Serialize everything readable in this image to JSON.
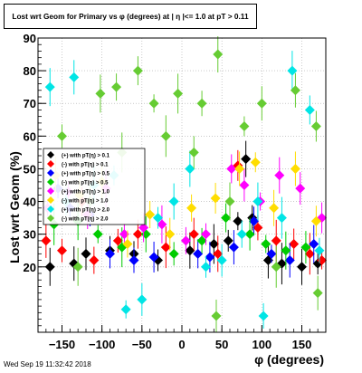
{
  "title": "Lost wrt Geom for Primary vs φ (degrees) at | η |<= 1.0 at pT > 0.11",
  "footer": "Wed Sep 19 11:32:42 2018",
  "chart_data": {
    "type": "scatter",
    "title": "Lost wrt Geom for Primary vs φ (degrees) at | η |<= 1.0 at pT > 0.11",
    "xlabel": "φ (degrees)",
    "ylabel": "Lost wrt Geom (%)",
    "xlim": [
      -180,
      180
    ],
    "ylim": [
      0,
      90
    ],
    "xticks": [
      -150,
      -100,
      -50,
      0,
      50,
      100,
      150
    ],
    "yticks": [
      20,
      30,
      40,
      50,
      60,
      70,
      80,
      90
    ],
    "xticklabels": [
      "−150",
      "−100",
      "−50",
      "0",
      "50",
      "100",
      "150"
    ],
    "yticklabels": [
      "20",
      "30",
      "40",
      "50",
      "60",
      "70",
      "80",
      "90"
    ],
    "grid": true,
    "legend_position": "middle-left",
    "series": [
      {
        "name": "(+) with pT(η) > 0.1",
        "color": "#000000",
        "points": [
          [
            -165,
            20
          ],
          [
            -135,
            21
          ],
          [
            -120,
            24
          ],
          [
            -90,
            25
          ],
          [
            -60,
            24
          ],
          [
            -30,
            22
          ],
          [
            10,
            25
          ],
          [
            40,
            27
          ],
          [
            58,
            28
          ],
          [
            70,
            34
          ],
          [
            80,
            53
          ],
          [
            88,
            35
          ],
          [
            108,
            22
          ],
          [
            125,
            21
          ],
          [
            150,
            20
          ],
          [
            170,
            21
          ]
        ]
      },
      {
        "name": "(-) with pT(η) > 0.1",
        "color": "#ff0000",
        "points": [
          [
            -170,
            28
          ],
          [
            -150,
            25
          ],
          [
            -125,
            40
          ],
          [
            -110,
            22
          ],
          [
            -80,
            28
          ],
          [
            -55,
            30
          ],
          [
            -20,
            26
          ],
          [
            15,
            30
          ],
          [
            45,
            24
          ],
          [
            70,
            51
          ],
          [
            95,
            32
          ],
          [
            118,
            28
          ],
          [
            140,
            27
          ],
          [
            160,
            24
          ],
          [
            175,
            22
          ]
        ]
      },
      {
        "name": "(+) with pT(η) > 0.5",
        "color": "#0000ff",
        "points": [
          [
            -155,
            44
          ],
          [
            -140,
            38
          ],
          [
            -115,
            36
          ],
          [
            -90,
            24
          ],
          [
            -60,
            22
          ],
          [
            -35,
            23
          ],
          [
            20,
            24
          ],
          [
            35,
            23
          ],
          [
            65,
            26
          ],
          [
            90,
            34
          ],
          [
            112,
            24
          ],
          [
            135,
            22
          ],
          [
            165,
            27
          ]
        ]
      },
      {
        "name": "(-) with pT(η) > 0.5",
        "color": "#00cc00",
        "points": [
          [
            -160,
            33
          ],
          [
            -130,
            34
          ],
          [
            -105,
            30
          ],
          [
            -75,
            26
          ],
          [
            -45,
            30
          ],
          [
            -10,
            24
          ],
          [
            25,
            28
          ],
          [
            55,
            35
          ],
          [
            85,
            30
          ],
          [
            105,
            27
          ],
          [
            130,
            25
          ],
          [
            155,
            26
          ]
        ]
      },
      {
        "name": "(+) with pT(η) > 1.0",
        "color": "#ff00ff",
        "points": [
          [
            -168,
            38
          ],
          [
            -142,
            43
          ],
          [
            -118,
            36
          ],
          [
            -95,
            44
          ],
          [
            -72,
            30
          ],
          [
            -48,
            32
          ],
          [
            -25,
            33
          ],
          [
            5,
            28
          ],
          [
            30,
            30
          ],
          [
            62,
            50
          ],
          [
            78,
            45
          ],
          [
            98,
            40
          ],
          [
            122,
            48
          ],
          [
            148,
            44
          ],
          [
            175,
            35
          ]
        ]
      },
      {
        "name": "(-) with pT(η) > 1.0",
        "color": "#ffdd00",
        "points": [
          [
            -158,
            48
          ],
          [
            -128,
            42
          ],
          [
            -100,
            46
          ],
          [
            -68,
            27
          ],
          [
            -40,
            36
          ],
          [
            -15,
            30
          ],
          [
            12,
            38
          ],
          [
            42,
            41
          ],
          [
            72,
            50
          ],
          [
            92,
            52
          ],
          [
            115,
            38
          ],
          [
            142,
            50
          ],
          [
            168,
            34
          ]
        ]
      },
      {
        "name": "(+) with pT(η) > 2.0",
        "color": "#00e5e5",
        "points": [
          [
            -165,
            75
          ],
          [
            -145,
            40
          ],
          [
            -135,
            78
          ],
          [
            -110,
            45
          ],
          [
            -85,
            48
          ],
          [
            -70,
            7
          ],
          [
            -50,
            10
          ],
          [
            -30,
            35
          ],
          [
            -10,
            40
          ],
          [
            10,
            50
          ],
          [
            30,
            20
          ],
          [
            50,
            22
          ],
          [
            75,
            30
          ],
          [
            95,
            40
          ],
          [
            102,
            5
          ],
          [
            125,
            35
          ],
          [
            138,
            80
          ],
          [
            160,
            68
          ],
          [
            172,
            25
          ]
        ]
      },
      {
        "name": "(-) with pT(η) > 2.0",
        "color": "#66cc33",
        "points": [
          [
            -150,
            60
          ],
          [
            -130,
            20
          ],
          [
            -115,
            40
          ],
          [
            -102,
            73
          ],
          [
            -82,
            75
          ],
          [
            -75,
            55
          ],
          [
            -55,
            80
          ],
          [
            -35,
            70
          ],
          [
            -20,
            60
          ],
          [
            -5,
            73
          ],
          [
            15,
            55
          ],
          [
            25,
            70
          ],
          [
            45,
            85
          ],
          [
            43,
            5
          ],
          [
            60,
            40
          ],
          [
            78,
            63
          ],
          [
            100,
            70
          ],
          [
            118,
            20
          ],
          [
            142,
            74
          ],
          [
            168,
            63
          ],
          [
            170,
            12
          ]
        ]
      }
    ]
  }
}
